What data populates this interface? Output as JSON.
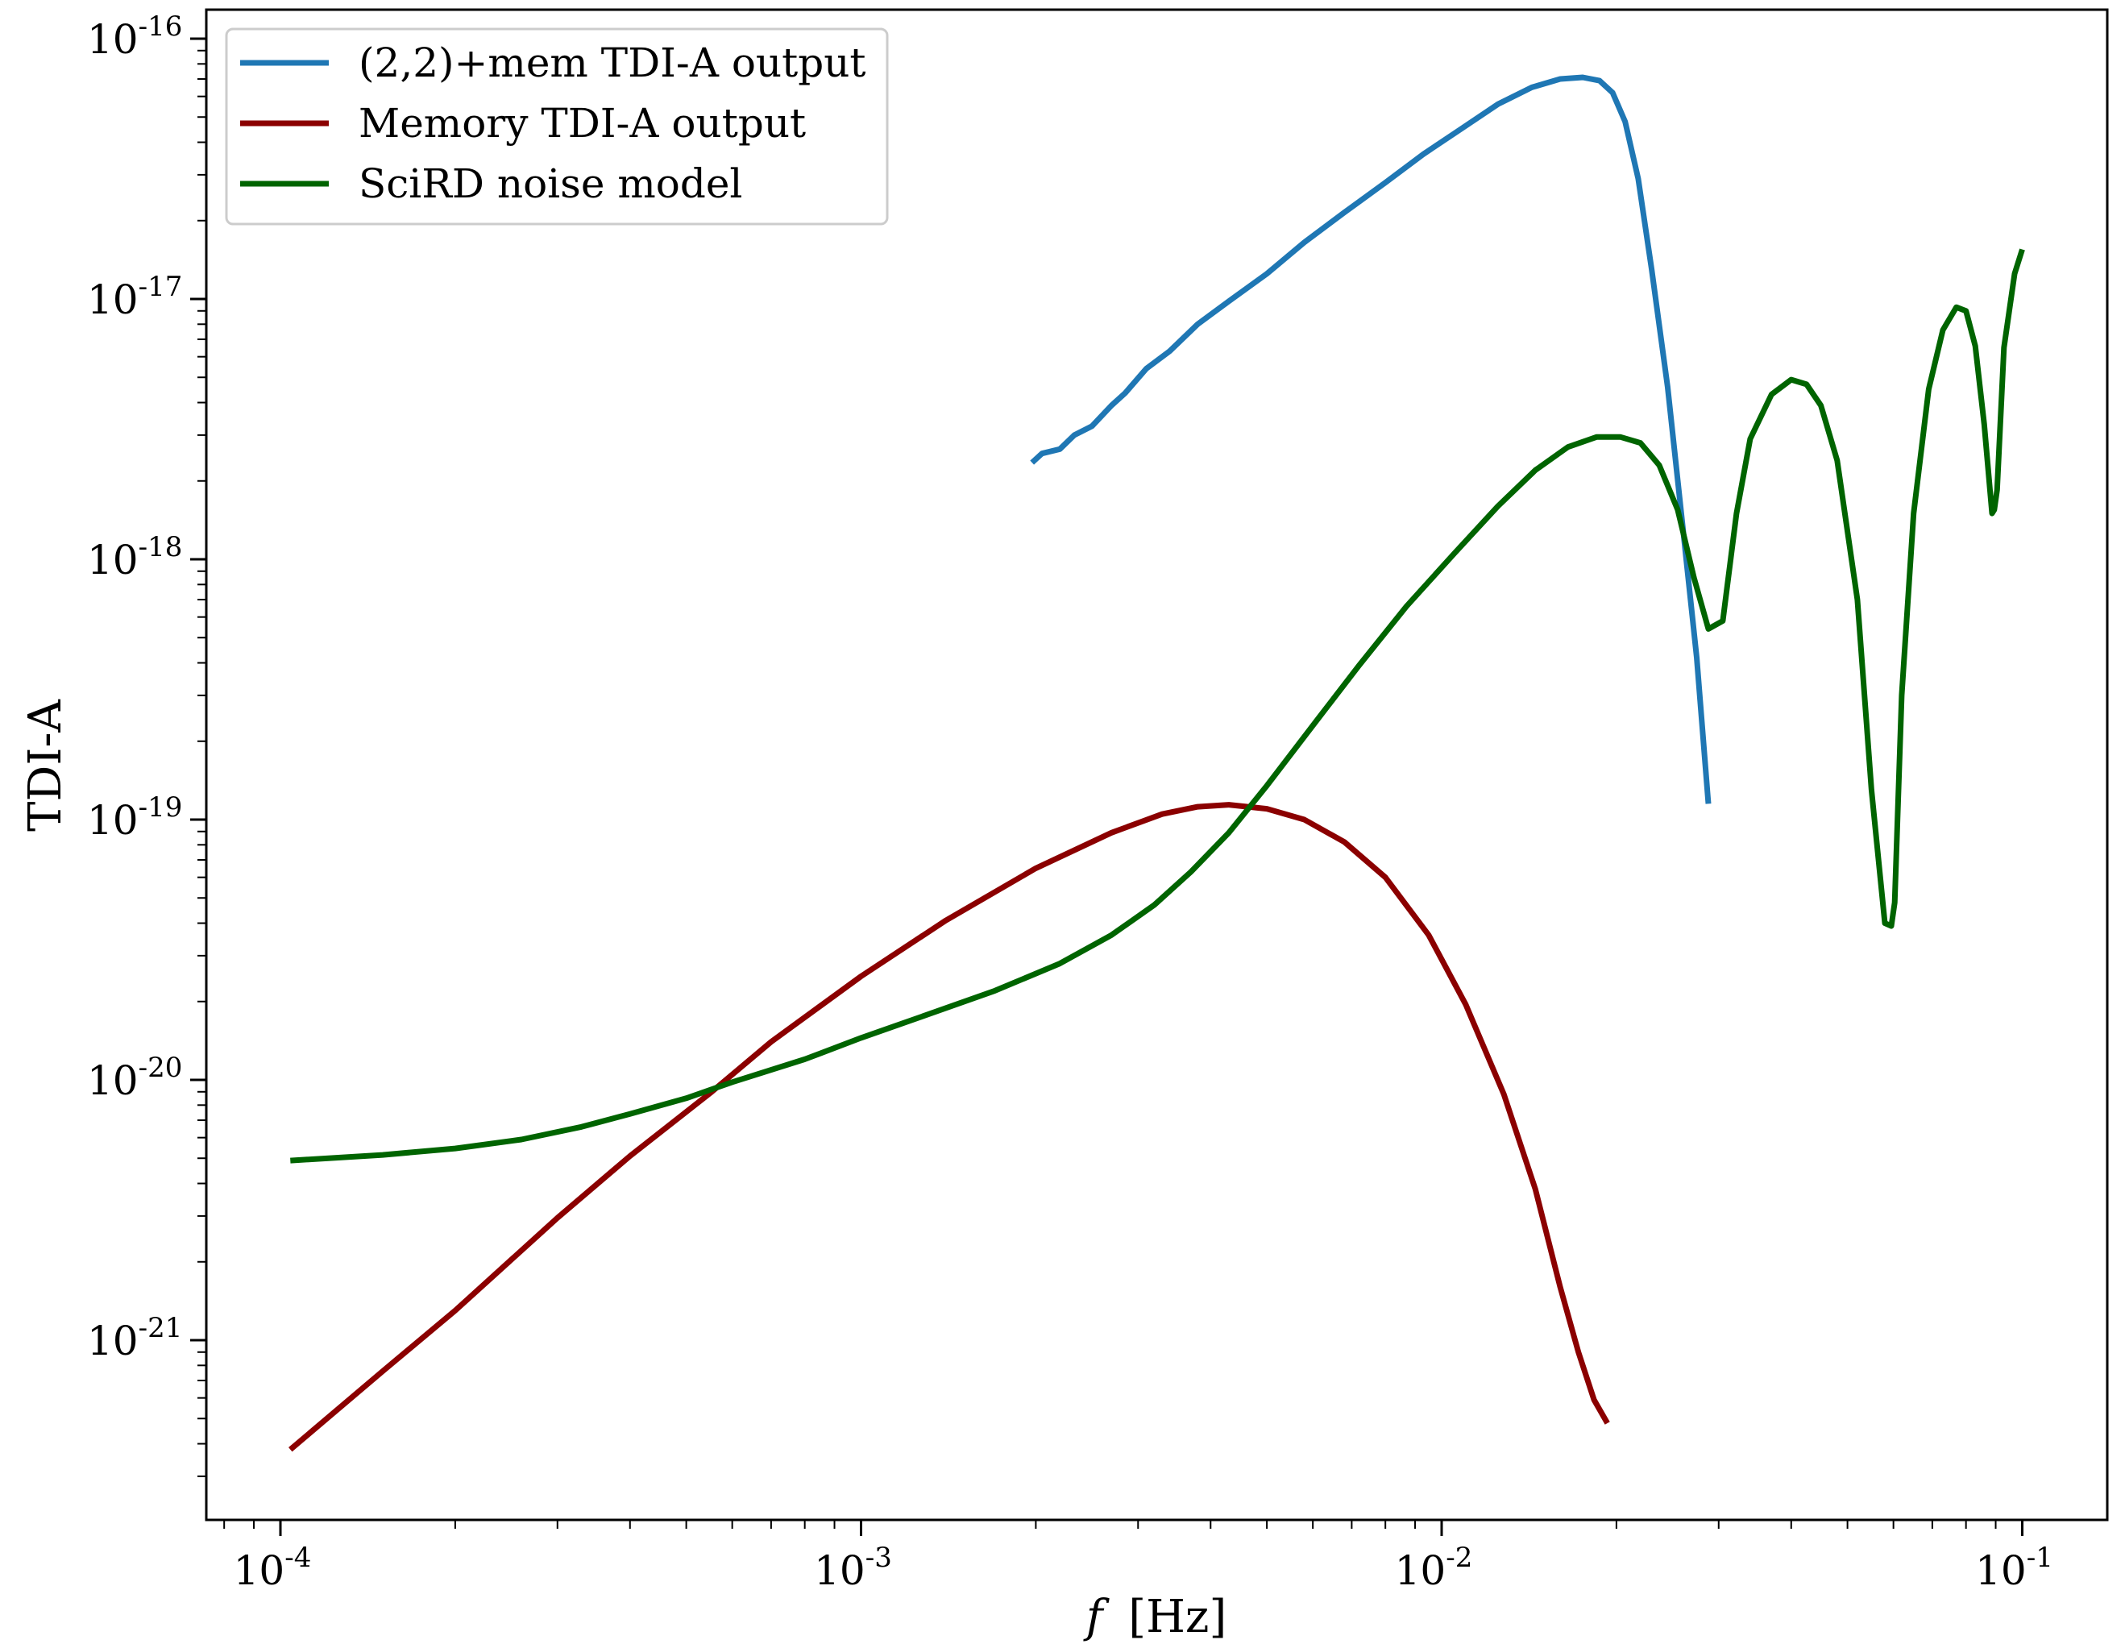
{
  "chart_data": {
    "type": "line",
    "title": "",
    "xlabel": "f [Hz]",
    "xlabel_italic_part": "f",
    "xlabel_unit": "[Hz]",
    "ylabel": "TDI-A",
    "xscale": "log",
    "yscale": "log",
    "xlim": [
      7.5e-05,
      0.135
    ],
    "ylim": [
      2.2e-22,
      1.4e-16
    ],
    "grid": false,
    "legend_position": "upper left",
    "x_ticks": [
      {
        "exp": "-4",
        "value": 0.0001
      },
      {
        "exp": "-3",
        "value": 0.001
      },
      {
        "exp": "-2",
        "value": 0.01
      },
      {
        "exp": "-1",
        "value": 0.1
      }
    ],
    "y_ticks": [
      {
        "exp": "-16",
        "value": 1e-16
      },
      {
        "exp": "-17",
        "value": 1e-17
      },
      {
        "exp": "-18",
        "value": 1e-18
      },
      {
        "exp": "-19",
        "value": 1e-19
      },
      {
        "exp": "-20",
        "value": 1e-20
      },
      {
        "exp": "-21",
        "value": 1e-21
      }
    ],
    "tick_base": "10",
    "series": [
      {
        "name": "(2,2)+mem TDI-A output",
        "color": "#1f77b4",
        "x": [
          0.00197,
          0.00205,
          0.0022,
          0.00233,
          0.0025,
          0.0027,
          0.00285,
          0.0031,
          0.0034,
          0.0038,
          0.0043,
          0.005,
          0.0058,
          0.0068,
          0.008,
          0.0093,
          0.0108,
          0.0125,
          0.0143,
          0.016,
          0.0175,
          0.0187,
          0.0197,
          0.0207,
          0.0218,
          0.023,
          0.0245,
          0.026,
          0.0275,
          0.0288
        ],
        "y": [
          2.35e-18,
          2.55e-18,
          2.65e-18,
          3e-18,
          3.25e-18,
          3.9e-18,
          4.35e-18,
          5.4e-18,
          6.3e-18,
          8e-18,
          9.8e-18,
          1.25e-17,
          1.65e-17,
          2.15e-17,
          2.8e-17,
          3.6e-17,
          4.5e-17,
          5.6e-17,
          6.5e-17,
          7e-17,
          7.1e-17,
          6.9e-17,
          6.2e-17,
          4.8e-17,
          2.9e-17,
          1.3e-17,
          4.6e-18,
          1.35e-18,
          4.2e-19,
          1.15e-19
        ]
      },
      {
        "name": "Memory TDI-A output",
        "color": "#8b0000",
        "x": [
          0.000104,
          0.00015,
          0.0002,
          0.0003,
          0.0004,
          0.00055,
          0.0007,
          0.001,
          0.0014,
          0.002,
          0.0027,
          0.0033,
          0.0038,
          0.0043,
          0.005,
          0.0058,
          0.0068,
          0.008,
          0.0095,
          0.011,
          0.0128,
          0.0145,
          0.016,
          0.0172,
          0.0183,
          0.0193
        ],
        "y": [
          3.8e-22,
          7.6e-22,
          1.3e-21,
          2.95e-21,
          5.1e-21,
          8.9e-21,
          1.4e-20,
          2.5e-20,
          4.1e-20,
          6.5e-20,
          8.9e-20,
          1.05e-19,
          1.12e-19,
          1.14e-19,
          1.1e-19,
          1e-19,
          8.2e-20,
          6e-20,
          3.6e-20,
          1.95e-20,
          8.8e-21,
          3.8e-21,
          1.6e-21,
          9e-22,
          5.9e-22,
          4.8e-22
        ]
      },
      {
        "name": "SciRD noise model",
        "color": "#006400",
        "x": [
          0.000104,
          0.00015,
          0.0002,
          0.00026,
          0.00033,
          0.0004,
          0.0005,
          0.0006,
          0.0008,
          0.001,
          0.0013,
          0.0017,
          0.0022,
          0.0027,
          0.0032,
          0.0037,
          0.0043,
          0.005,
          0.006,
          0.0072,
          0.0087,
          0.0105,
          0.0125,
          0.0145,
          0.0165,
          0.0185,
          0.0203,
          0.022,
          0.0237,
          0.0255,
          0.0272,
          0.0288,
          0.0305,
          0.0322,
          0.034,
          0.037,
          0.04,
          0.0425,
          0.045,
          0.048,
          0.052,
          0.055,
          0.058,
          0.0595,
          0.0603,
          0.062,
          0.065,
          0.069,
          0.073,
          0.077,
          0.08,
          0.083,
          0.086,
          0.0887,
          0.0895,
          0.0905,
          0.093,
          0.097,
          0.1
        ],
        "y": [
          4.9e-21,
          5.15e-21,
          5.45e-21,
          5.9e-21,
          6.6e-21,
          7.4e-21,
          8.5e-21,
          9.8e-21,
          1.2e-20,
          1.45e-20,
          1.78e-20,
          2.2e-20,
          2.8e-20,
          3.6e-20,
          4.7e-20,
          6.3e-20,
          8.9e-20,
          1.35e-19,
          2.3e-19,
          3.9e-19,
          6.6e-19,
          1.05e-18,
          1.6e-18,
          2.2e-18,
          2.7e-18,
          2.95e-18,
          2.95e-18,
          2.8e-18,
          2.3e-18,
          1.55e-18,
          8.5e-19,
          5.4e-19,
          5.8e-19,
          1.5e-18,
          2.9e-18,
          4.3e-18,
          4.9e-18,
          4.7e-18,
          3.9e-18,
          2.4e-18,
          7e-19,
          1.3e-19,
          4e-20,
          3.9e-20,
          4.8e-20,
          3e-19,
          1.5e-18,
          4.5e-18,
          7.6e-18,
          9.3e-18,
          9e-18,
          6.6e-18,
          3.3e-18,
          1.5e-18,
          1.55e-18,
          1.85e-18,
          6.5e-18,
          1.25e-17,
          1.55e-17
        ]
      }
    ]
  },
  "legend": {
    "items": [
      {
        "label": "(2,2)+mem TDI-A output",
        "color": "#1f77b4"
      },
      {
        "label": "Memory TDI-A output",
        "color": "#8b0000"
      },
      {
        "label": "SciRD noise model",
        "color": "#006400"
      }
    ]
  }
}
